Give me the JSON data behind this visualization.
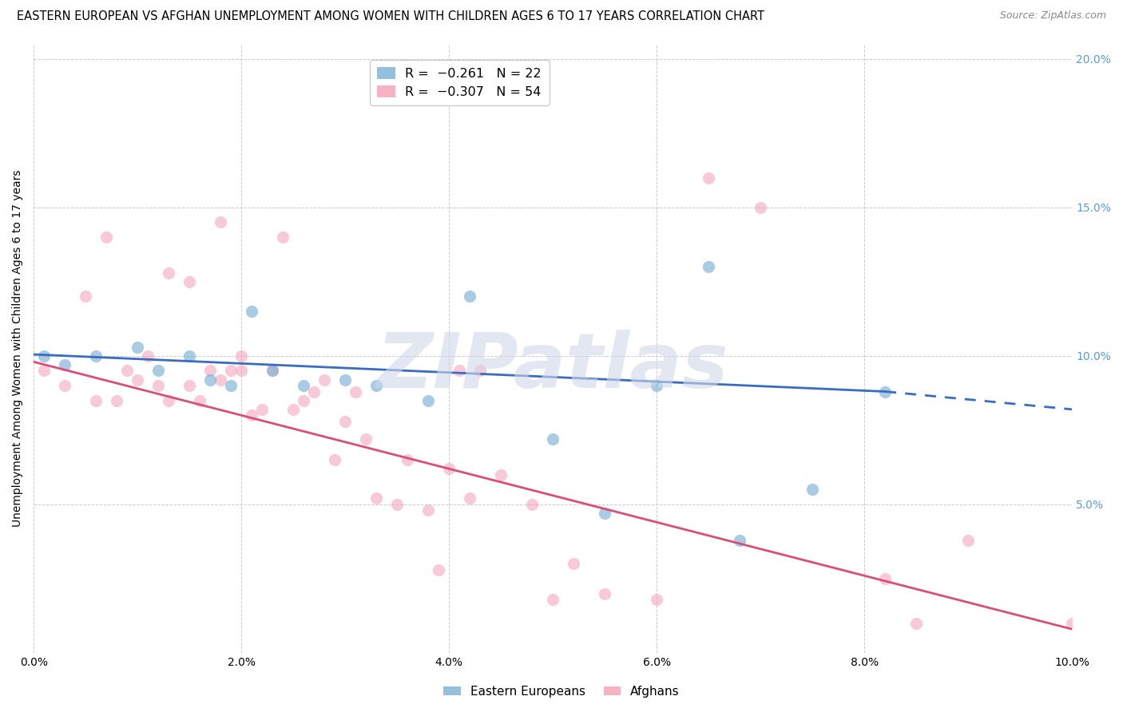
{
  "title": "EASTERN EUROPEAN VS AFGHAN UNEMPLOYMENT AMONG WOMEN WITH CHILDREN AGES 6 TO 17 YEARS CORRELATION CHART",
  "source": "Source: ZipAtlas.com",
  "ylabel": "Unemployment Among Women with Children Ages 6 to 17 years",
  "xlim": [
    0.0,
    0.1
  ],
  "ylim": [
    0.0,
    0.205
  ],
  "xticks": [
    0.0,
    0.02,
    0.04,
    0.06,
    0.08,
    0.1
  ],
  "yticks": [
    0.0,
    0.05,
    0.1,
    0.15,
    0.2
  ],
  "xtick_labels": [
    "0.0%",
    "2.0%",
    "4.0%",
    "6.0%",
    "8.0%",
    "10.0%"
  ],
  "ytick_labels_right": [
    "",
    "5.0%",
    "10.0%",
    "15.0%",
    "20.0%"
  ],
  "watermark": "ZIPatlas",
  "ee_color": "#7bafd4",
  "af_color": "#f4a0b8",
  "blue_line_color": "#3a6dbf",
  "pink_line_color": "#d94f78",
  "right_tick_color": "#5b9bd5",
  "grid_color": "#cccccc",
  "background_color": "#ffffff",
  "title_fontsize": 10.5,
  "source_fontsize": 9,
  "tick_fontsize": 10,
  "ylabel_fontsize": 10,
  "eastern_europeans": {
    "x": [
      0.001,
      0.003,
      0.006,
      0.01,
      0.012,
      0.015,
      0.017,
      0.019,
      0.021,
      0.023,
      0.026,
      0.03,
      0.033,
      0.038,
      0.042,
      0.05,
      0.055,
      0.06,
      0.065,
      0.068,
      0.075,
      0.082
    ],
    "y": [
      0.1,
      0.097,
      0.1,
      0.103,
      0.095,
      0.1,
      0.092,
      0.09,
      0.115,
      0.095,
      0.09,
      0.092,
      0.09,
      0.085,
      0.12,
      0.072,
      0.047,
      0.09,
      0.13,
      0.038,
      0.055,
      0.088
    ]
  },
  "afghans": {
    "x": [
      0.001,
      0.003,
      0.005,
      0.006,
      0.007,
      0.008,
      0.009,
      0.01,
      0.011,
      0.012,
      0.013,
      0.013,
      0.015,
      0.015,
      0.016,
      0.017,
      0.018,
      0.018,
      0.019,
      0.02,
      0.02,
      0.021,
      0.022,
      0.023,
      0.024,
      0.025,
      0.026,
      0.027,
      0.028,
      0.029,
      0.03,
      0.031,
      0.032,
      0.033,
      0.035,
      0.036,
      0.038,
      0.039,
      0.04,
      0.041,
      0.042,
      0.043,
      0.045,
      0.048,
      0.05,
      0.052,
      0.055,
      0.06,
      0.065,
      0.07,
      0.082,
      0.085,
      0.09,
      0.1
    ],
    "y": [
      0.095,
      0.09,
      0.12,
      0.085,
      0.14,
      0.085,
      0.095,
      0.092,
      0.1,
      0.09,
      0.085,
      0.128,
      0.125,
      0.09,
      0.085,
      0.095,
      0.092,
      0.145,
      0.095,
      0.095,
      0.1,
      0.08,
      0.082,
      0.095,
      0.14,
      0.082,
      0.085,
      0.088,
      0.092,
      0.065,
      0.078,
      0.088,
      0.072,
      0.052,
      0.05,
      0.065,
      0.048,
      0.028,
      0.062,
      0.095,
      0.052,
      0.095,
      0.06,
      0.05,
      0.018,
      0.03,
      0.02,
      0.018,
      0.16,
      0.15,
      0.025,
      0.01,
      0.038,
      0.01
    ]
  },
  "blue_line_solid": {
    "x": [
      0.0,
      0.082
    ],
    "y": [
      0.1005,
      0.088
    ]
  },
  "blue_line_dashed": {
    "x": [
      0.082,
      0.1
    ],
    "y": [
      0.088,
      0.082
    ]
  },
  "pink_line": {
    "x": [
      0.0,
      0.1
    ],
    "y": [
      0.098,
      0.008
    ]
  }
}
